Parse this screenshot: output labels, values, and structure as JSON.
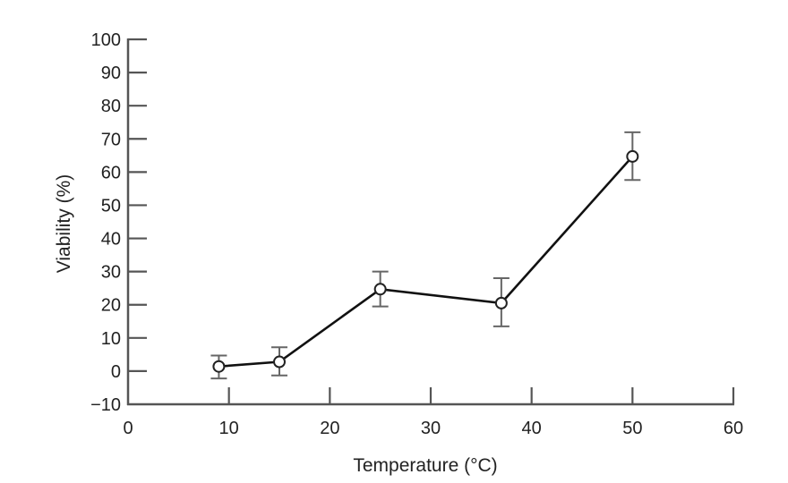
{
  "chart_data": {
    "type": "line",
    "title": "",
    "xlabel": "Temperature (°C)",
    "ylabel": "Viability (%)",
    "xlim": [
      0,
      60
    ],
    "ylim": [
      -10,
      100
    ],
    "xticks": [
      0,
      10,
      20,
      30,
      40,
      50,
      60
    ],
    "yticks": [
      -10,
      0,
      10,
      20,
      30,
      40,
      50,
      60,
      70,
      80,
      90,
      100
    ],
    "xtick_labels": [
      "0",
      "10",
      "20",
      "30",
      "40",
      "50",
      "60"
    ],
    "ytick_labels": [
      "−10",
      "0",
      "10",
      "20",
      "30",
      "40",
      "50",
      "60",
      "70",
      "80",
      "90",
      "100"
    ],
    "grid": false,
    "legend": null,
    "series": [
      {
        "name": "Viability",
        "marker": "open-circle",
        "color": "#111111",
        "x": [
          9,
          15,
          25,
          37,
          50
        ],
        "y": [
          1.4,
          2.8,
          24.7,
          20.5,
          64.7
        ],
        "err_upper": [
          4.7,
          7.2,
          30.0,
          28.0,
          72.0
        ],
        "err_lower": [
          -2.2,
          -1.3,
          19.5,
          13.5,
          57.6
        ]
      }
    ]
  }
}
